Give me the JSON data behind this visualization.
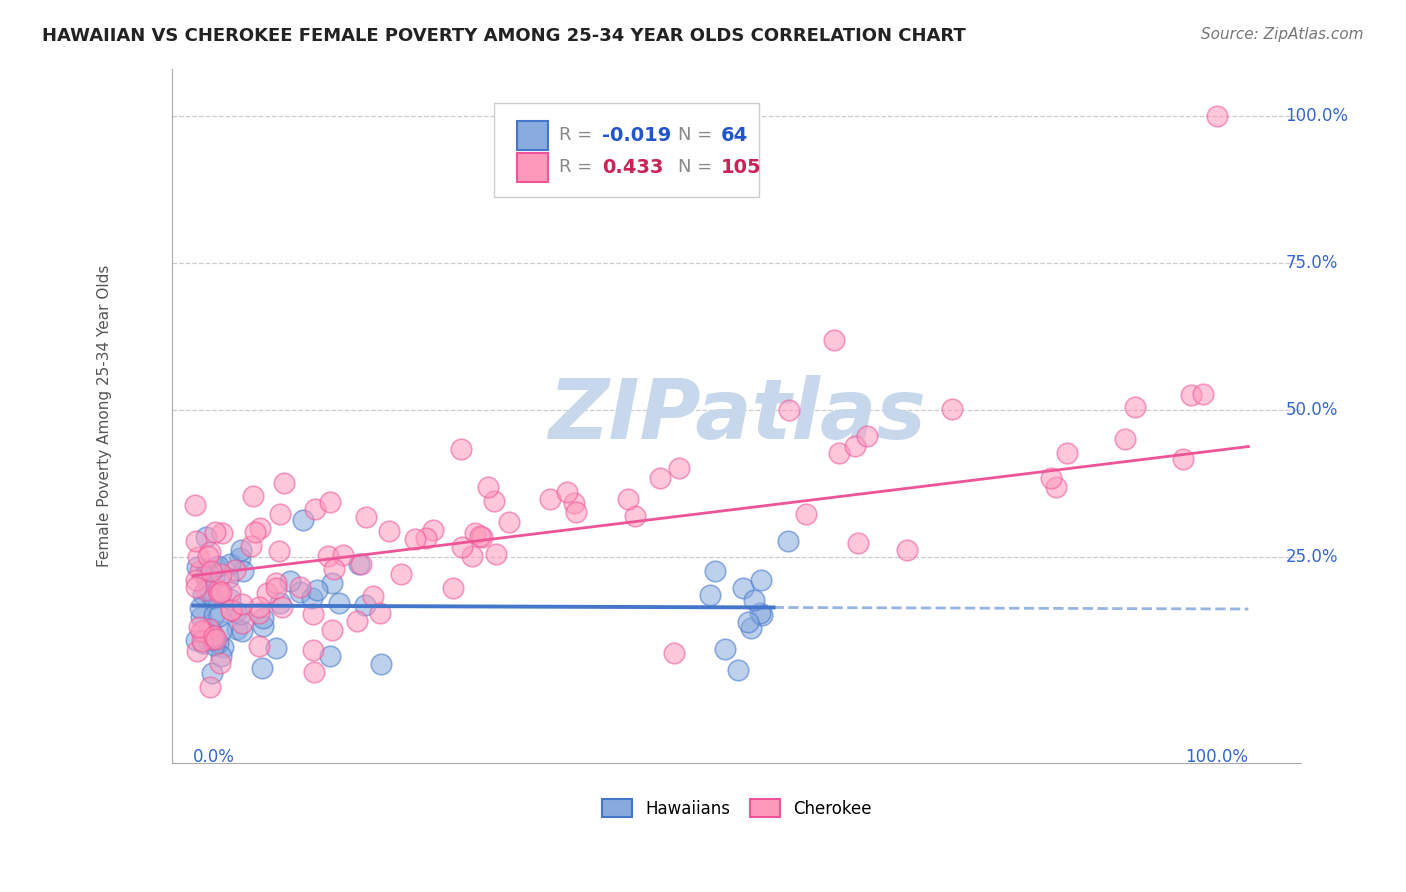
{
  "title": "HAWAIIAN VS CHEROKEE FEMALE POVERTY AMONG 25-34 YEAR OLDS CORRELATION CHART",
  "source": "Source: ZipAtlas.com",
  "ylabel": "Female Poverty Among 25-34 Year Olds",
  "stat_box": {
    "hawaiian": {
      "R": "-0.019",
      "N": "64",
      "color": "#2255cc"
    },
    "cherokee": {
      "R": "0.433",
      "N": "105",
      "color": "#cc2255"
    }
  },
  "hawaiian_line_color": "#4477cc",
  "cherokee_line_color": "#ee5599",
  "hawaiian_scatter_color": "#88aadd",
  "cherokee_scatter_color": "#ff99bb",
  "background_color": "#ffffff",
  "grid_color": "#cccccc",
  "watermark": "ZIPatlas",
  "watermark_color": "#c8d8ec"
}
